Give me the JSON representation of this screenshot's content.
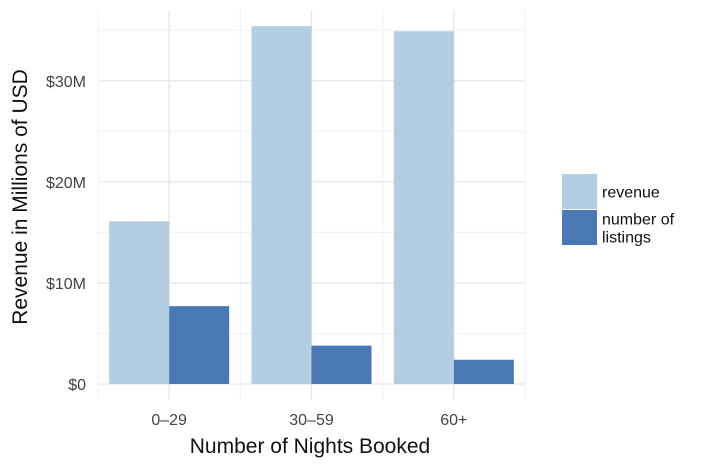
{
  "chart_data": {
    "type": "bar",
    "title": "",
    "xlabel": "Number of Nights Booked",
    "ylabel": "Revenue in Millions of USD",
    "categories": [
      "0–29",
      "30–59",
      "60+"
    ],
    "series": [
      {
        "name": "revenue",
        "values": [
          16.1,
          35.4,
          34.9
        ],
        "color": "#b3cde2"
      },
      {
        "name": "number of listings",
        "legend_lines": [
          "number of",
          "listings"
        ],
        "values": [
          7.7,
          3.8,
          2.4
        ],
        "color": "#4a78b4"
      }
    ],
    "ylim": [
      0,
      37
    ],
    "yticks": [
      {
        "value": 0,
        "label": "$0"
      },
      {
        "value": 10,
        "label": "$10M"
      },
      {
        "value": 20,
        "label": "$20M"
      },
      {
        "value": 30,
        "label": "$30M"
      }
    ],
    "grid": true,
    "legend_position": "right"
  }
}
